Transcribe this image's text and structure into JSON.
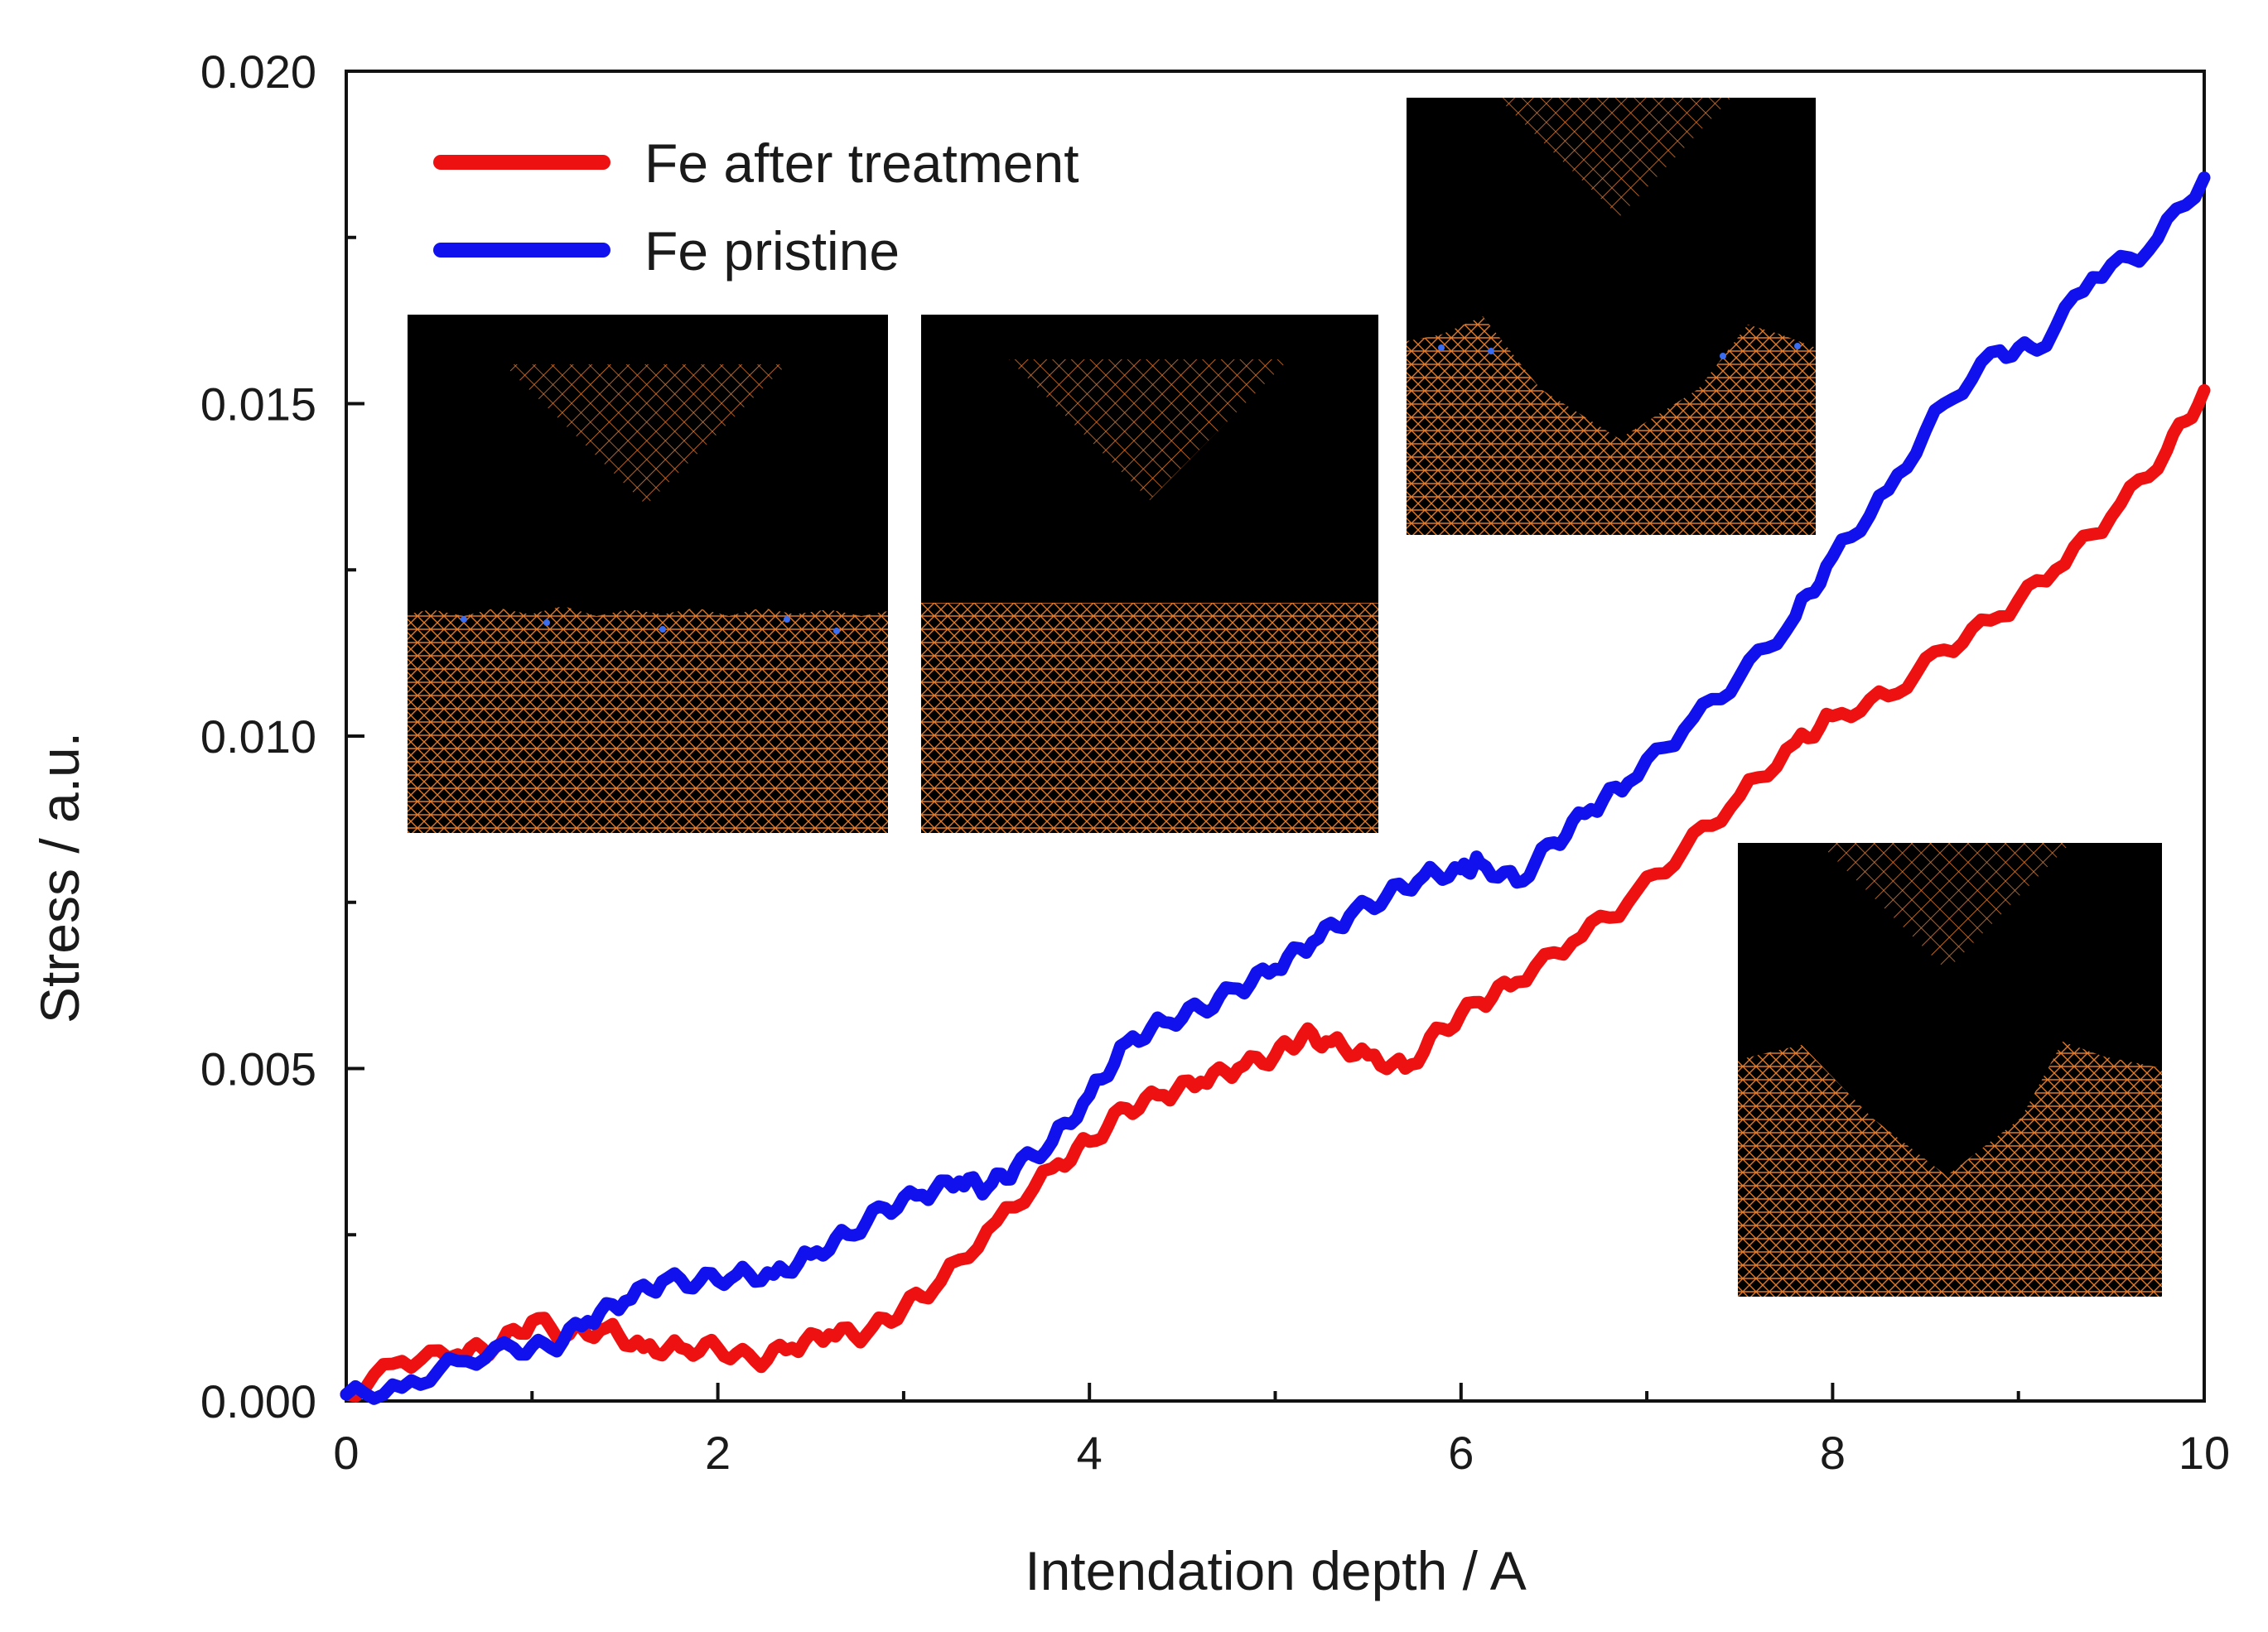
{
  "chart_data": {
    "type": "line",
    "title": "",
    "xlabel": "Intendation depth / A",
    "ylabel": "Stress / a.u.",
    "xlim": [
      0,
      10
    ],
    "ylim": [
      0,
      0.02
    ],
    "xticks": [
      "0",
      "2",
      "4",
      "6",
      "8",
      "10"
    ],
    "yticks": [
      "0.000",
      "0.005",
      "0.010",
      "0.015",
      "0.020"
    ],
    "legend_position": "top-left",
    "series": [
      {
        "name": "Fe after treatment",
        "color": "#ee1111",
        "points": [
          [
            0,
            0.0001
          ],
          [
            0.3,
            0.0006
          ],
          [
            0.6,
            0.0007
          ],
          [
            0.8,
            0.0008
          ],
          [
            1.0,
            0.0012
          ],
          [
            1.2,
            0.001
          ],
          [
            1.4,
            0.0011
          ],
          [
            1.6,
            0.0008
          ],
          [
            1.8,
            0.0008
          ],
          [
            2.0,
            0.0008
          ],
          [
            2.2,
            0.0006
          ],
          [
            2.4,
            0.0008
          ],
          [
            2.6,
            0.001
          ],
          [
            2.8,
            0.001
          ],
          [
            3.0,
            0.0014
          ],
          [
            3.2,
            0.0018
          ],
          [
            3.5,
            0.0027
          ],
          [
            3.8,
            0.0035
          ],
          [
            4.0,
            0.0039
          ],
          [
            4.2,
            0.0044
          ],
          [
            4.4,
            0.0046
          ],
          [
            4.6,
            0.0048
          ],
          [
            4.8,
            0.005
          ],
          [
            5.0,
            0.0052
          ],
          [
            5.15,
            0.0055
          ],
          [
            5.3,
            0.0054
          ],
          [
            5.5,
            0.0052
          ],
          [
            5.7,
            0.005
          ],
          [
            5.9,
            0.0056
          ],
          [
            6.1,
            0.006
          ],
          [
            6.3,
            0.0063
          ],
          [
            6.6,
            0.0069
          ],
          [
            6.9,
            0.0075
          ],
          [
            7.2,
            0.0083
          ],
          [
            7.5,
            0.0091
          ],
          [
            7.8,
            0.0099
          ],
          [
            8.0,
            0.0103
          ],
          [
            8.3,
            0.0106
          ],
          [
            8.6,
            0.0113
          ],
          [
            8.9,
            0.0118
          ],
          [
            9.2,
            0.0125
          ],
          [
            9.5,
            0.0133
          ],
          [
            9.8,
            0.0143
          ],
          [
            10.0,
            0.0152
          ]
        ]
      },
      {
        "name": "Fe pristine",
        "color": "#1111ee",
        "points": [
          [
            0,
            0.0001
          ],
          [
            0.3,
            0.0002
          ],
          [
            0.6,
            0.0006
          ],
          [
            0.9,
            0.0008
          ],
          [
            1.1,
            0.0008
          ],
          [
            1.3,
            0.0012
          ],
          [
            1.5,
            0.0015
          ],
          [
            1.7,
            0.0018
          ],
          [
            1.9,
            0.0018
          ],
          [
            2.1,
            0.0019
          ],
          [
            2.3,
            0.0019
          ],
          [
            2.5,
            0.0022
          ],
          [
            2.7,
            0.0025
          ],
          [
            2.9,
            0.0029
          ],
          [
            3.1,
            0.0031
          ],
          [
            3.3,
            0.0033
          ],
          [
            3.45,
            0.0032
          ],
          [
            3.6,
            0.0035
          ],
          [
            3.8,
            0.0039
          ],
          [
            4.0,
            0.0046
          ],
          [
            4.2,
            0.0054
          ],
          [
            4.4,
            0.0057
          ],
          [
            4.6,
            0.0059
          ],
          [
            4.8,
            0.0062
          ],
          [
            5.0,
            0.0065
          ],
          [
            5.2,
            0.0069
          ],
          [
            5.4,
            0.0073
          ],
          [
            5.6,
            0.0076
          ],
          [
            5.8,
            0.0079
          ],
          [
            6.0,
            0.008
          ],
          [
            6.1,
            0.0081
          ],
          [
            6.3,
            0.0078
          ],
          [
            6.5,
            0.0084
          ],
          [
            6.7,
            0.0089
          ],
          [
            6.9,
            0.0093
          ],
          [
            7.2,
            0.0101
          ],
          [
            7.5,
            0.0109
          ],
          [
            7.8,
            0.0118
          ],
          [
            8.0,
            0.0127
          ],
          [
            8.3,
            0.0137
          ],
          [
            8.6,
            0.015
          ],
          [
            8.9,
            0.0158
          ],
          [
            9.1,
            0.0158
          ],
          [
            9.4,
            0.0169
          ],
          [
            9.7,
            0.0173
          ],
          [
            10.0,
            0.0184
          ]
        ]
      }
    ]
  }
}
